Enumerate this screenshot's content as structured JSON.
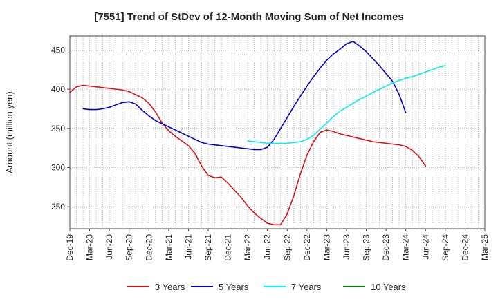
{
  "chart_data": {
    "type": "line",
    "title": "[7551]  Trend of StDev of 12-Month Moving Sum of Net Incomes",
    "xlabel": "",
    "ylabel": "Amount (million yen)",
    "ylim": [
      222,
      468
    ],
    "yticks": [
      250,
      300,
      350,
      400,
      450
    ],
    "xticks": [
      "Dec-19",
      "Mar-20",
      "Jun-20",
      "Sep-20",
      "Dec-20",
      "Mar-21",
      "Jun-21",
      "Sep-21",
      "Dec-21",
      "Mar-22",
      "Jun-22",
      "Sep-22",
      "Dec-22",
      "Mar-23",
      "Jun-23",
      "Sep-23",
      "Dec-23",
      "Mar-24",
      "Jun-24",
      "Sep-24",
      "Dec-24",
      "Mar-25"
    ],
    "grid": true,
    "legend_position": "bottom",
    "series": [
      {
        "name": "3 Years",
        "color": "#dd1111",
        "start_index": 0,
        "values": [
          396,
          403,
          405,
          404,
          403,
          402,
          401,
          400,
          399,
          397,
          393,
          389,
          382,
          371,
          357,
          347,
          340,
          334,
          328,
          318,
          302,
          290,
          287,
          288,
          280,
          271,
          262,
          251,
          242,
          235,
          229,
          227,
          227,
          241,
          264,
          292,
          316,
          333,
          345,
          348,
          346,
          343,
          341,
          339,
          337,
          335,
          333,
          332,
          331,
          330,
          329,
          327,
          322,
          314,
          302
        ]
      },
      {
        "name": "5 Years",
        "color": "#0000cc",
        "start_index": 2,
        "values": [
          375,
          374,
          374,
          375,
          377,
          380,
          383,
          384,
          381,
          373,
          366,
          360,
          356,
          352,
          348,
          344,
          340,
          336,
          332,
          330,
          329,
          328,
          327,
          326,
          325,
          324,
          323,
          323,
          326,
          336,
          350,
          364,
          378,
          391,
          404,
          416,
          427,
          437,
          445,
          451,
          458,
          461,
          455,
          448,
          439,
          430,
          420,
          410,
          393,
          370
        ]
      },
      {
        "name": "7 Years",
        "color": "#00eeee",
        "start_index": 27,
        "values": [
          334,
          333,
          332,
          331,
          331,
          331,
          331,
          332,
          333,
          336,
          341,
          349,
          357,
          365,
          372,
          377,
          382,
          387,
          391,
          396,
          400,
          404,
          408,
          411,
          414,
          416,
          419,
          422,
          425,
          428,
          430
        ]
      },
      {
        "name": "10 Years",
        "color": "#008000",
        "start_index": 0,
        "values": []
      }
    ]
  }
}
